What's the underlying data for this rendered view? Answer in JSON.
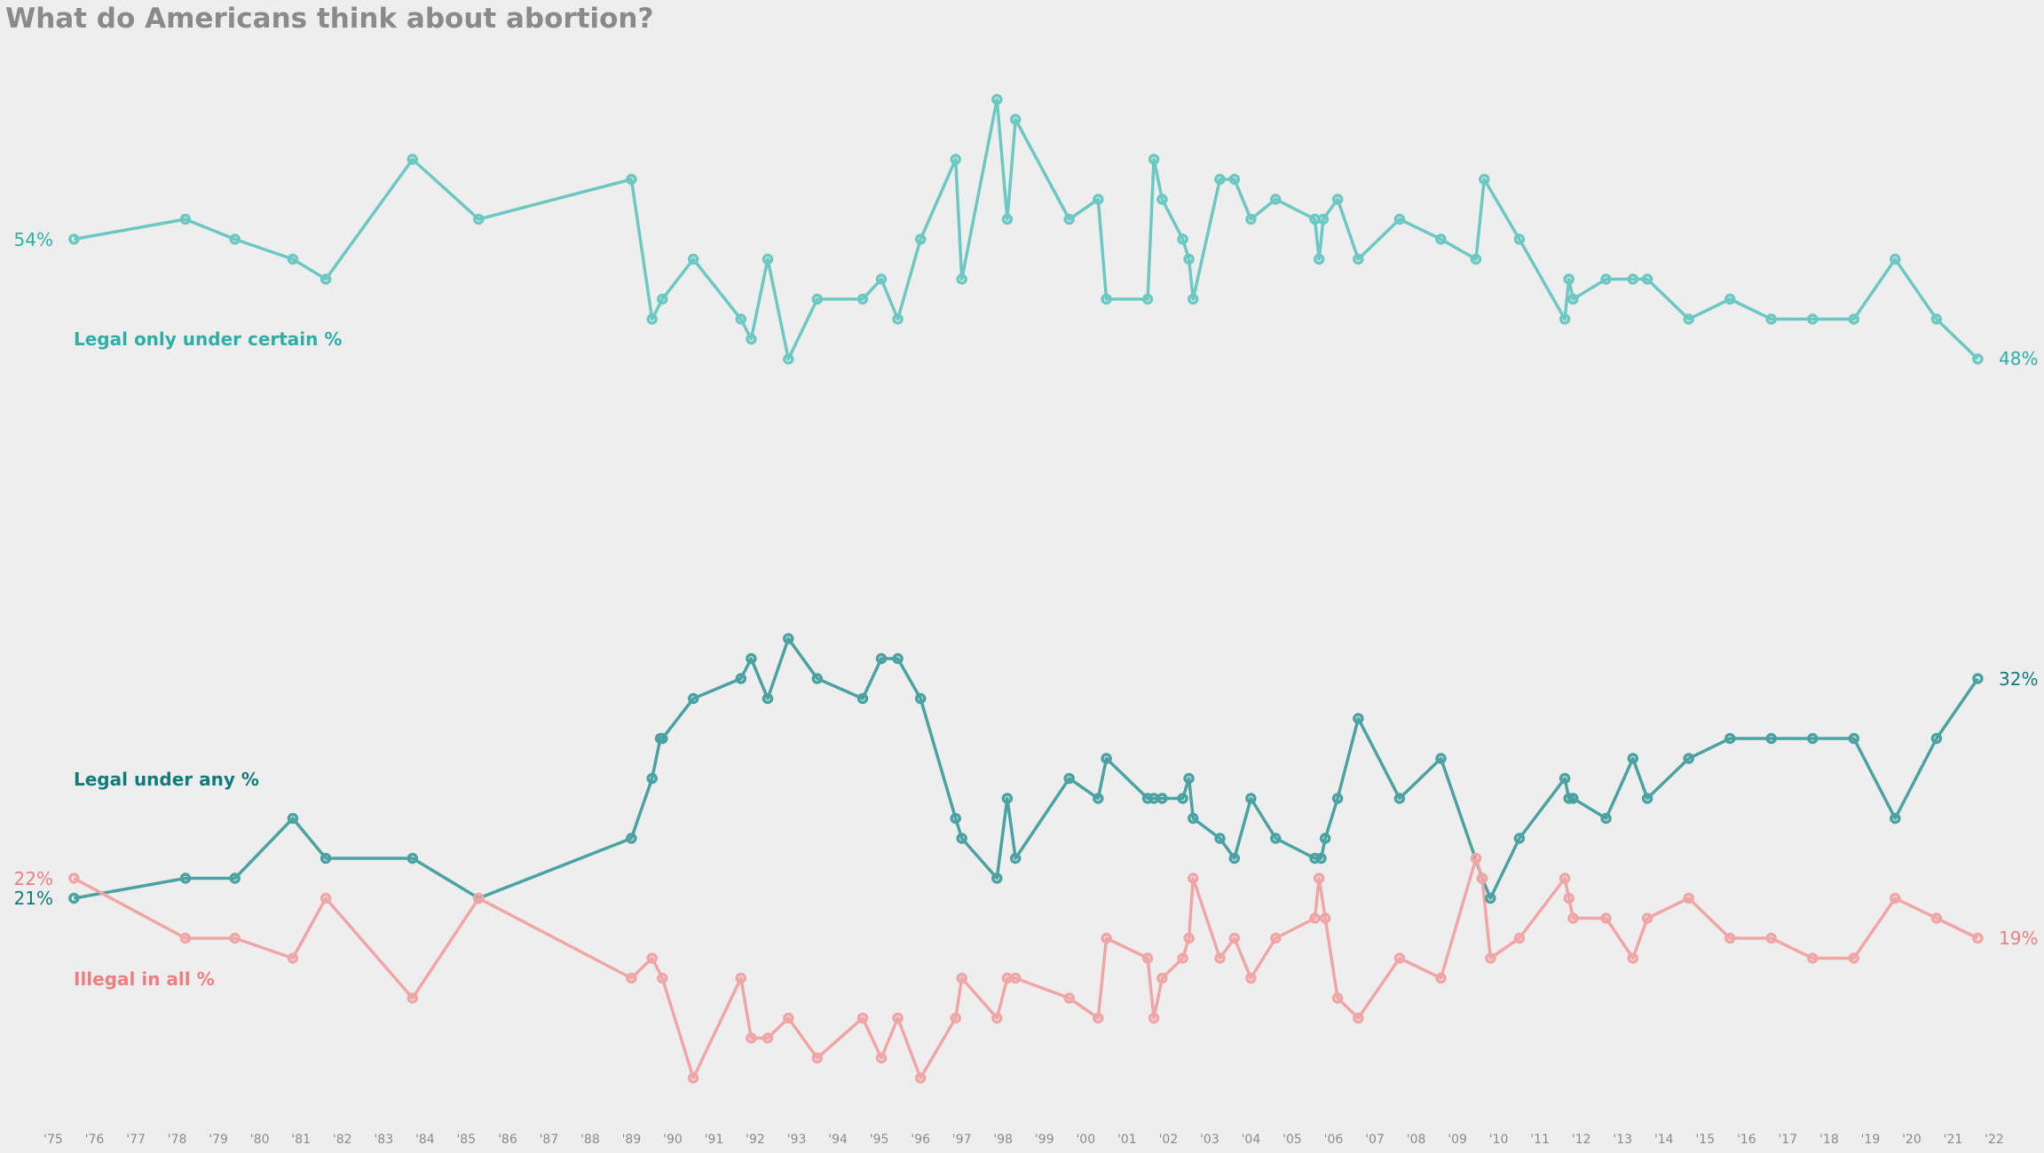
{
  "title": "What do Americans think about abortion?",
  "chart_data": {
    "type": "line",
    "title": "What do Americans think about abortion?",
    "xlabel": "",
    "ylabel": "",
    "x_range": [
      1975,
      2022
    ],
    "grid": false,
    "x_tick_labels": [
      "'75",
      "'76",
      "'77",
      "'78",
      "'79",
      "'80",
      "'81",
      "'82",
      "'83",
      "'84",
      "'85",
      "'86",
      "'87",
      "'88",
      "'89",
      "'90",
      "'91",
      "'92",
      "'93",
      "'94",
      "'95",
      "'96",
      "'97",
      "'98",
      "'99",
      "'00",
      "'01",
      "'02",
      "'03",
      "'04",
      "'05",
      "'06",
      "'07",
      "'08",
      "'09",
      "'10",
      "'11",
      "'12",
      "'13",
      "'14",
      "'15",
      "'16",
      "'17",
      "'18",
      "'19",
      "'20",
      "'21",
      "'22"
    ],
    "series": [
      {
        "name": "Legal only under certain %",
        "color": "#6cc8c2",
        "start_label": "54%",
        "end_label": "48%",
        "points": [
          [
            1975.5,
            54
          ],
          [
            1978.2,
            55
          ],
          [
            1979.4,
            54
          ],
          [
            1980.8,
            53
          ],
          [
            1981.6,
            52
          ],
          [
            1983.7,
            58
          ],
          [
            1985.3,
            55
          ],
          [
            1989.0,
            57
          ],
          [
            1989.5,
            50
          ],
          [
            1989.75,
            51
          ],
          [
            1990.5,
            53
          ],
          [
            1991.65,
            50
          ],
          [
            1991.9,
            49
          ],
          [
            1992.3,
            53
          ],
          [
            1992.8,
            48
          ],
          [
            1993.5,
            51
          ],
          [
            1994.6,
            51
          ],
          [
            1995.05,
            52
          ],
          [
            1995.45,
            50
          ],
          [
            1996.0,
            54
          ],
          [
            1996.85,
            58
          ],
          [
            1997.0,
            52
          ],
          [
            1997.85,
            61
          ],
          [
            1998.1,
            55
          ],
          [
            1998.3,
            60
          ],
          [
            1999.6,
            55
          ],
          [
            2000.3,
            56
          ],
          [
            2000.5,
            51
          ],
          [
            2001.5,
            51
          ],
          [
            2001.65,
            58
          ],
          [
            2001.85,
            56
          ],
          [
            2002.35,
            54
          ],
          [
            2002.5,
            53
          ],
          [
            2002.6,
            51
          ],
          [
            2003.25,
            57
          ],
          [
            2003.6,
            57
          ],
          [
            2004.0,
            55
          ],
          [
            2004.6,
            56
          ],
          [
            2005.55,
            55
          ],
          [
            2005.65,
            53
          ],
          [
            2005.75,
            55
          ],
          [
            2006.1,
            56
          ],
          [
            2006.6,
            53
          ],
          [
            2007.6,
            55
          ],
          [
            2008.6,
            54
          ],
          [
            2009.45,
            53
          ],
          [
            2009.65,
            57
          ],
          [
            2010.5,
            54
          ],
          [
            2011.6,
            50
          ],
          [
            2011.7,
            52
          ],
          [
            2011.8,
            51
          ],
          [
            2012.6,
            52
          ],
          [
            2013.25,
            52
          ],
          [
            2013.6,
            52
          ],
          [
            2014.6,
            50
          ],
          [
            2015.6,
            51
          ],
          [
            2016.6,
            50
          ],
          [
            2017.6,
            50
          ],
          [
            2018.6,
            50
          ],
          [
            2019.6,
            53
          ],
          [
            2020.6,
            50
          ],
          [
            2021.6,
            48
          ]
        ]
      },
      {
        "name": "Legal under any %",
        "color": "#4aa3a2",
        "start_label": "21%",
        "end_label": "32%",
        "points": [
          [
            1975.5,
            21
          ],
          [
            1978.2,
            22
          ],
          [
            1979.4,
            22
          ],
          [
            1980.8,
            25
          ],
          [
            1981.6,
            23
          ],
          [
            1983.7,
            23
          ],
          [
            1985.3,
            21
          ],
          [
            1989.0,
            24
          ],
          [
            1989.5,
            27
          ],
          [
            1989.7,
            29
          ],
          [
            1989.75,
            29
          ],
          [
            1990.5,
            31
          ],
          [
            1991.65,
            32
          ],
          [
            1991.9,
            33
          ],
          [
            1992.3,
            31
          ],
          [
            1992.8,
            34
          ],
          [
            1993.5,
            32
          ],
          [
            1994.6,
            31
          ],
          [
            1995.05,
            33
          ],
          [
            1995.45,
            33
          ],
          [
            1996.0,
            31
          ],
          [
            1996.85,
            25
          ],
          [
            1997.0,
            24
          ],
          [
            1997.85,
            22
          ],
          [
            1998.1,
            26
          ],
          [
            1998.3,
            23
          ],
          [
            1999.6,
            27
          ],
          [
            2000.3,
            26
          ],
          [
            2000.5,
            28
          ],
          [
            2001.5,
            26
          ],
          [
            2001.65,
            26
          ],
          [
            2001.85,
            26
          ],
          [
            2002.35,
            26
          ],
          [
            2002.5,
            27
          ],
          [
            2002.6,
            25
          ],
          [
            2003.25,
            24
          ],
          [
            2003.6,
            23
          ],
          [
            2004.0,
            26
          ],
          [
            2004.6,
            24
          ],
          [
            2005.55,
            23
          ],
          [
            2005.7,
            23
          ],
          [
            2005.8,
            24
          ],
          [
            2006.1,
            26
          ],
          [
            2006.6,
            30
          ],
          [
            2007.6,
            26
          ],
          [
            2008.6,
            28
          ],
          [
            2009.6,
            22
          ],
          [
            2009.8,
            21
          ],
          [
            2010.5,
            24
          ],
          [
            2011.6,
            27
          ],
          [
            2011.7,
            26
          ],
          [
            2011.8,
            26
          ],
          [
            2012.6,
            25
          ],
          [
            2013.25,
            28
          ],
          [
            2013.6,
            26
          ],
          [
            2014.6,
            28
          ],
          [
            2015.6,
            29
          ],
          [
            2016.6,
            29
          ],
          [
            2017.6,
            29
          ],
          [
            2018.6,
            29
          ],
          [
            2019.6,
            25
          ],
          [
            2020.6,
            29
          ],
          [
            2021.6,
            32
          ]
        ]
      },
      {
        "name": "Illegal in all %",
        "color": "#f0a6a6",
        "start_label": "22%",
        "end_label": "19%",
        "points": [
          [
            1975.5,
            22
          ],
          [
            1978.2,
            19
          ],
          [
            1979.4,
            19
          ],
          [
            1980.8,
            18
          ],
          [
            1981.6,
            21
          ],
          [
            1983.7,
            16
          ],
          [
            1985.3,
            21
          ],
          [
            1989.0,
            17
          ],
          [
            1989.5,
            18
          ],
          [
            1989.75,
            17
          ],
          [
            1990.5,
            12
          ],
          [
            1991.65,
            17
          ],
          [
            1991.9,
            14
          ],
          [
            1992.3,
            14
          ],
          [
            1992.8,
            15
          ],
          [
            1993.5,
            13
          ],
          [
            1994.6,
            15
          ],
          [
            1995.05,
            13
          ],
          [
            1995.45,
            15
          ],
          [
            1996.0,
            12
          ],
          [
            1996.85,
            15
          ],
          [
            1997.0,
            17
          ],
          [
            1997.85,
            15
          ],
          [
            1998.1,
            17
          ],
          [
            1998.3,
            17
          ],
          [
            1999.6,
            16
          ],
          [
            2000.3,
            15
          ],
          [
            2000.5,
            19
          ],
          [
            2001.5,
            18
          ],
          [
            2001.65,
            15
          ],
          [
            2001.85,
            17
          ],
          [
            2002.35,
            18
          ],
          [
            2002.5,
            19
          ],
          [
            2002.6,
            22
          ],
          [
            2003.25,
            18
          ],
          [
            2003.6,
            19
          ],
          [
            2004.0,
            17
          ],
          [
            2004.6,
            19
          ],
          [
            2005.55,
            20
          ],
          [
            2005.65,
            22
          ],
          [
            2005.8,
            20
          ],
          [
            2006.1,
            16
          ],
          [
            2006.6,
            15
          ],
          [
            2007.6,
            18
          ],
          [
            2008.6,
            17
          ],
          [
            2009.45,
            23
          ],
          [
            2009.6,
            22
          ],
          [
            2009.8,
            18
          ],
          [
            2010.5,
            19
          ],
          [
            2011.6,
            22
          ],
          [
            2011.7,
            21
          ],
          [
            2011.8,
            20
          ],
          [
            2012.6,
            20
          ],
          [
            2013.25,
            18
          ],
          [
            2013.6,
            20
          ],
          [
            2014.6,
            21
          ],
          [
            2015.6,
            19
          ],
          [
            2016.6,
            19
          ],
          [
            2017.6,
            18
          ],
          [
            2018.6,
            18
          ],
          [
            2019.6,
            21
          ],
          [
            2020.6,
            20
          ],
          [
            2021.6,
            19
          ]
        ]
      }
    ]
  },
  "colors": {
    "background": "#eeeeee",
    "title": "#8a8a8a",
    "ticks": "#8a8a8a",
    "legal_certain_line": "#6cc8c2",
    "legal_certain_text": "#2bb0a7",
    "legal_any_line": "#4aa3a2",
    "legal_any_text": "#0f7c7b",
    "illegal_line": "#f0a6a6",
    "illegal_text": "#ef7f7f"
  }
}
